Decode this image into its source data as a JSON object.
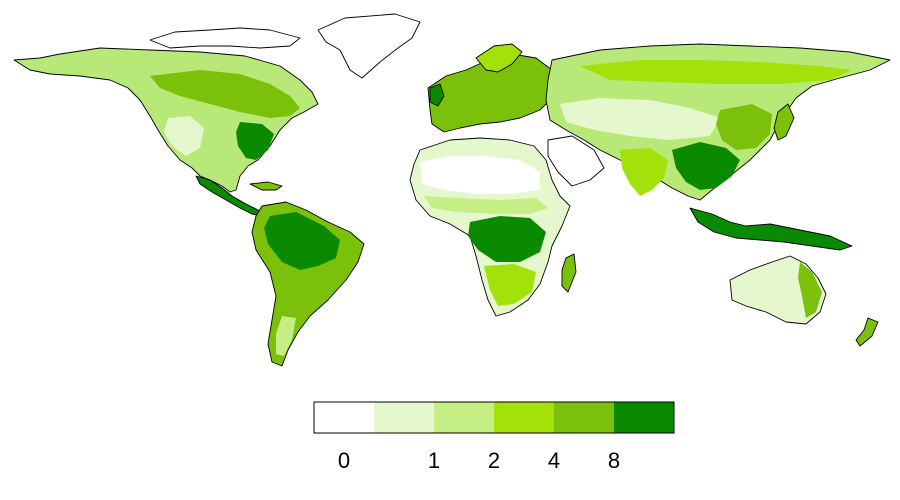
{
  "legend": {
    "colors": [
      "#ffffff",
      "#e5f7cd",
      "#c5ef84",
      "#a3e10a",
      "#7bc00a",
      "#0a8a00"
    ],
    "ticks": [
      "0",
      "1",
      "2",
      "4",
      "8"
    ]
  }
}
